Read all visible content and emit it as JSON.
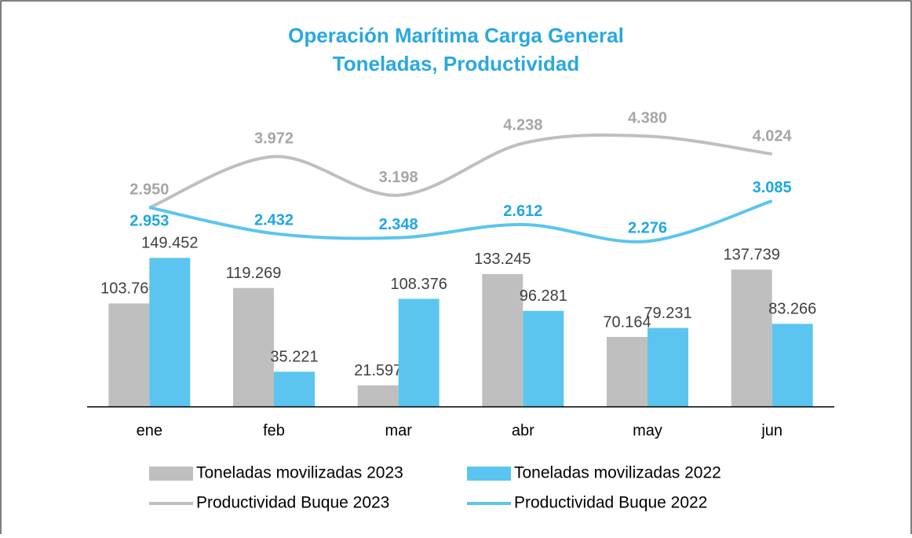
{
  "chart_data": {
    "type": "combo",
    "title": [
      "Operación Marítima Carga General",
      "Toneladas, Productividad"
    ],
    "categories": [
      "ene",
      "feb",
      "mar",
      "abr",
      "may",
      "jun"
    ],
    "ylim": [
      0,
      160000
    ],
    "y2lim": [
      0,
      5000
    ],
    "series": [
      {
        "name": "Toneladas movilizadas 2023",
        "type": "bar",
        "color": "#bfbfbf",
        "values": [
          103760,
          119269,
          21597,
          133245,
          70164,
          137739
        ],
        "value_labels": [
          "103.760",
          "119.269",
          "21.597",
          "133.245",
          "70.164",
          "137.739"
        ]
      },
      {
        "name": "Toneladas movilizadas 2022",
        "type": "bar",
        "color": "#5bc5f0",
        "values": [
          149452,
          35221,
          108376,
          96281,
          79231,
          83266
        ],
        "value_labels": [
          "149.452",
          "35.221",
          "108.376",
          "96.281",
          "79.231",
          "83.266"
        ]
      },
      {
        "name": "Productividad Buque 2023",
        "type": "line",
        "axis": "y2",
        "color": "#bfbfbf",
        "label_color": "#a6a6a6",
        "values": [
          2950,
          3972,
          3198,
          4238,
          4380,
          4024
        ],
        "value_labels": [
          "2.950",
          "3.972",
          "3.198",
          "4.238",
          "4.380",
          "4.024"
        ]
      },
      {
        "name": "Productividad Buque 2022",
        "type": "line",
        "axis": "y2",
        "color": "#5bc5f0",
        "label_color": "#1ea7e4",
        "values": [
          2953,
          2432,
          2348,
          2612,
          2276,
          3085
        ],
        "value_labels": [
          "2.953",
          "2.432",
          "2.348",
          "2.612",
          "2.276",
          "3.085"
        ]
      }
    ]
  }
}
